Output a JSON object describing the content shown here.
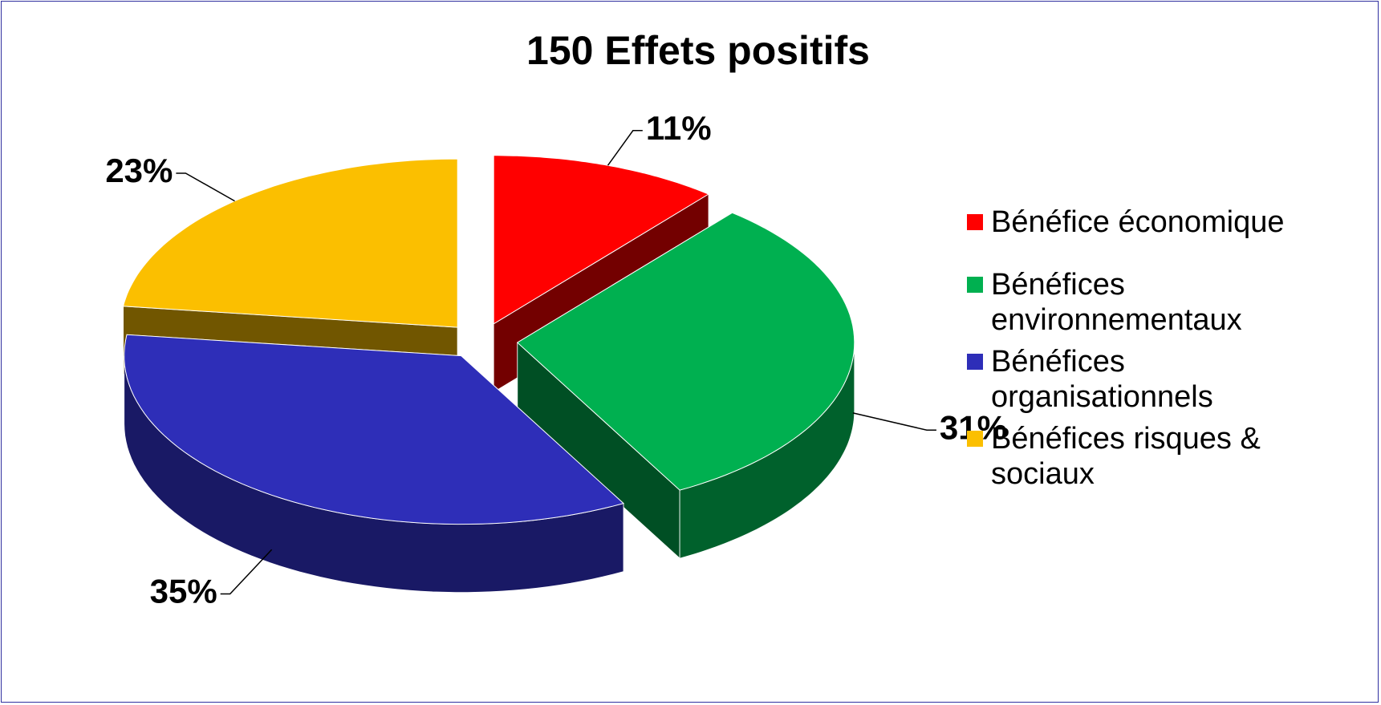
{
  "chart_data": {
    "type": "pie3d",
    "title": "150  Effets positifs",
    "categories": [
      "Bénéfice économique",
      "Bénéfices environnementaux",
      "Bénéfices organisationnels",
      "Bénéfices risques & sociaux"
    ],
    "values": [
      11,
      31,
      35,
      23
    ],
    "value_labels": [
      "11%",
      "31%",
      "35%",
      "23%"
    ],
    "colors": [
      "#ff0000",
      "#00b050",
      "#2e2eb8",
      "#fbbf00"
    ],
    "legend": "right"
  }
}
